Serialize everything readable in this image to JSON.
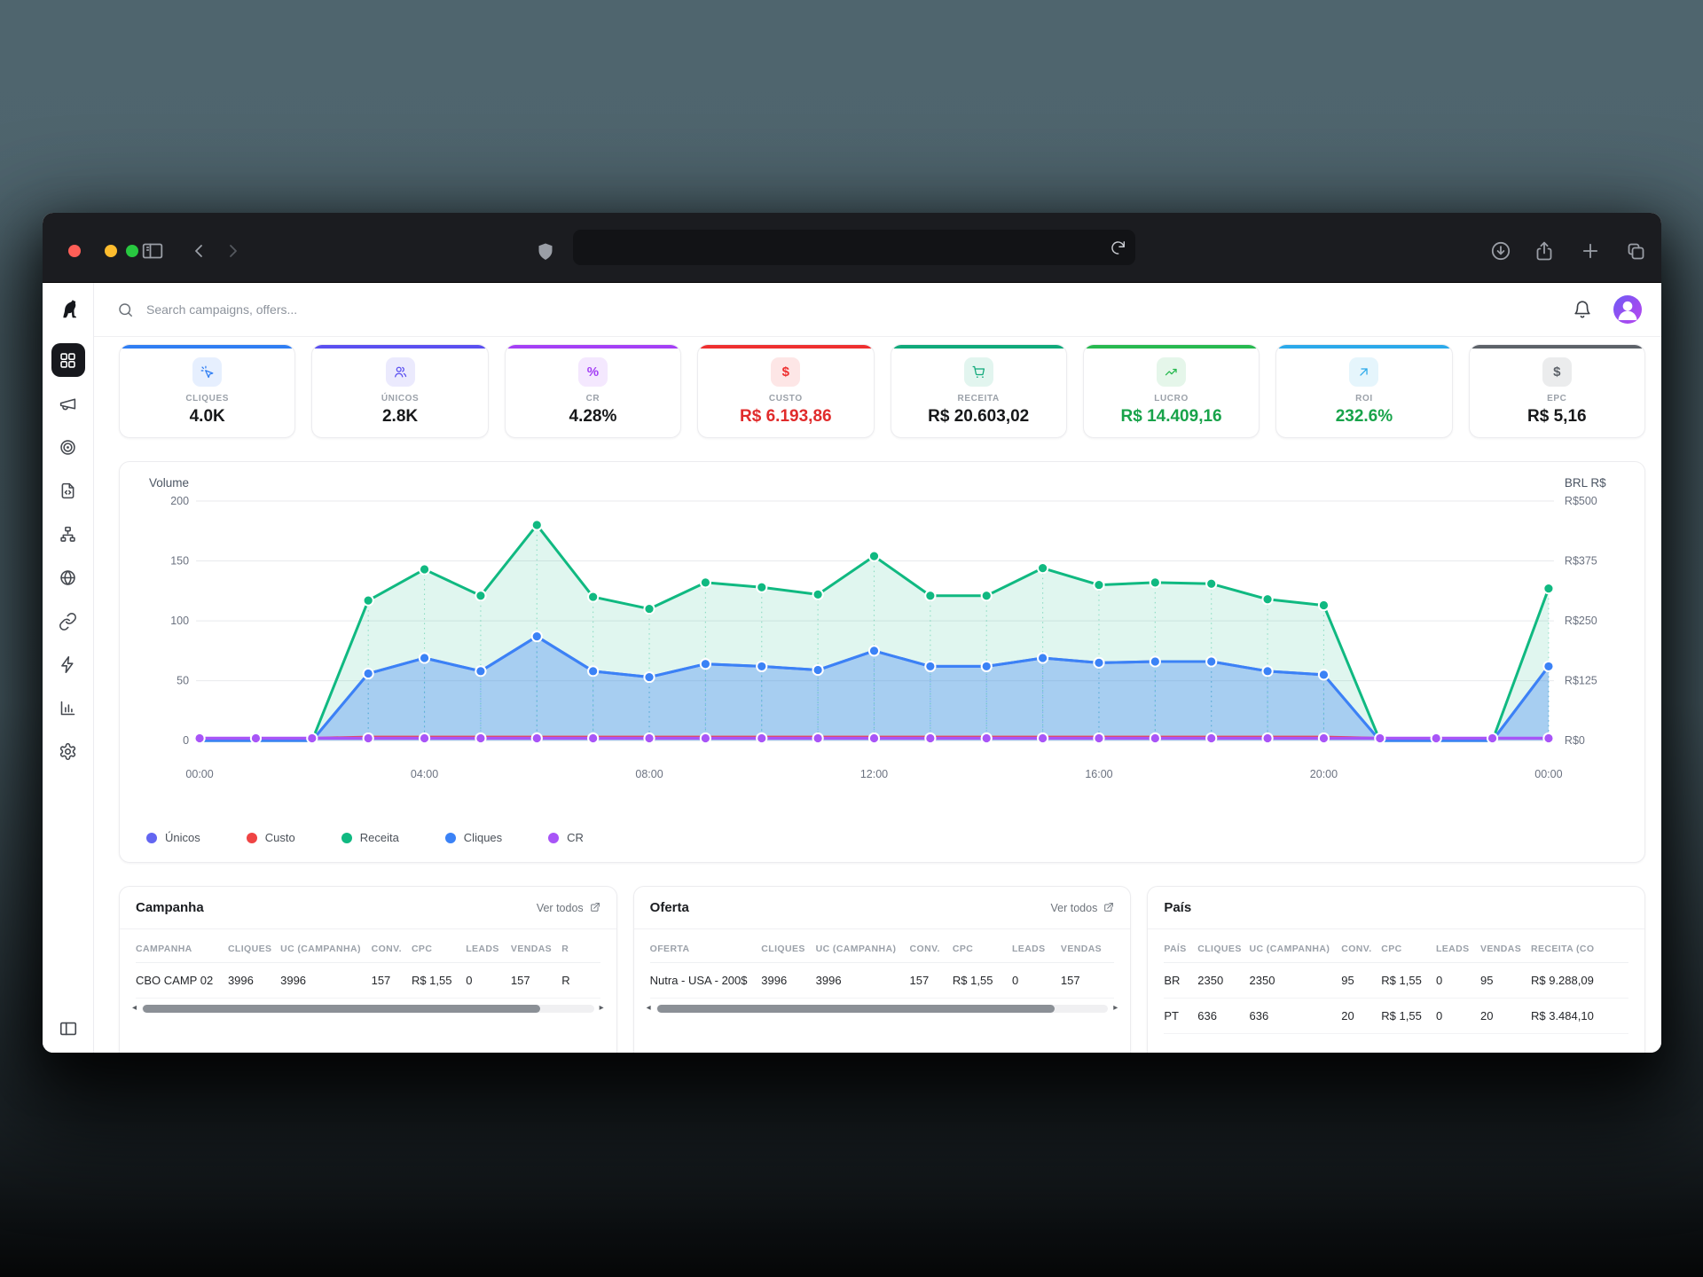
{
  "browser_chrome": {
    "traffic_lights": [
      "#ff5f57",
      "#febc2e",
      "#28c840"
    ],
    "url_value": ""
  },
  "topbar": {
    "search_placeholder": "Search campaigns, offers..."
  },
  "sidebar": {
    "items": [
      {
        "name": "dashboard",
        "icon": "grid",
        "active": true
      },
      {
        "name": "campaigns",
        "icon": "megaphone",
        "active": false
      },
      {
        "name": "offers",
        "icon": "target",
        "active": false
      },
      {
        "name": "landers",
        "icon": "file-code",
        "active": false
      },
      {
        "name": "funnels",
        "icon": "sitemap",
        "active": false
      },
      {
        "name": "domains",
        "icon": "globe",
        "active": false
      },
      {
        "name": "links",
        "icon": "link",
        "active": false
      },
      {
        "name": "automation",
        "icon": "bolt",
        "active": false
      },
      {
        "name": "reports",
        "icon": "bar-chart",
        "active": false
      },
      {
        "name": "settings",
        "icon": "gear",
        "active": false
      }
    ]
  },
  "kpis": [
    {
      "label": "CLIQUES",
      "value": "4.0K",
      "accent": "#2f7ef3",
      "icon": "click",
      "value_color": "#17181a"
    },
    {
      "label": "ÚNICOS",
      "value": "2.8K",
      "accent": "#5a4ff0",
      "icon": "users",
      "value_color": "#17181a"
    },
    {
      "label": "CR",
      "value": "4.28%",
      "accent": "#a43ff5",
      "icon": "percent",
      "value_color": "#17181a"
    },
    {
      "label": "CUSTO",
      "value": "R$ 6.193,86",
      "accent": "#ee2f2f",
      "icon": "dollar",
      "value_color": "#e02b2b"
    },
    {
      "label": "RECEITA",
      "value": "R$ 20.603,02",
      "accent": "#0fa97a",
      "icon": "cart",
      "value_color": "#17181a"
    },
    {
      "label": "LUCRO",
      "value": "R$ 14.409,16",
      "accent": "#27b94f",
      "icon": "trend-up",
      "value_color": "#18a34a"
    },
    {
      "label": "ROI",
      "value": "232.6%",
      "accent": "#2ba9ea",
      "icon": "arrow-up-right",
      "value_color": "#18a34a"
    },
    {
      "label": "EPC",
      "value": "R$ 5,16",
      "accent": "#5d6269",
      "icon": "dollar",
      "value_color": "#17181a"
    }
  ],
  "chart_data": {
    "type": "area",
    "x": [
      "00:00",
      "01:00",
      "02:00",
      "03:00",
      "04:00",
      "05:00",
      "06:00",
      "07:00",
      "08:00",
      "09:00",
      "10:00",
      "11:00",
      "12:00",
      "13:00",
      "14:00",
      "15:00",
      "16:00",
      "17:00",
      "18:00",
      "19:00",
      "20:00",
      "21:00",
      "22:00",
      "23:00",
      "00:00"
    ],
    "tick_every": 4,
    "grid": true,
    "legend_position": "bottom",
    "left_axis": {
      "title": "Volume",
      "min": 0,
      "max": 200,
      "ticks": [
        0,
        50,
        100,
        150,
        200
      ]
    },
    "right_axis": {
      "title": "BRL R$",
      "labels": [
        "R$0",
        "R$125",
        "R$250",
        "R$375",
        "R$500"
      ]
    },
    "series": [
      {
        "name": "Únicos",
        "color": "#6366f1",
        "fill": false,
        "dots": false,
        "guides": false,
        "values": [
          0,
          0,
          0,
          56,
          69,
          58,
          87,
          58,
          53,
          64,
          62,
          59,
          75,
          62,
          62,
          69,
          65,
          66,
          66,
          58,
          55,
          0,
          0,
          0,
          62
        ]
      },
      {
        "name": "Custo",
        "color": "#ef4444",
        "fill": false,
        "dots": false,
        "guides": false,
        "values": [
          2,
          2,
          2,
          3,
          3,
          3,
          3,
          3,
          3,
          3,
          3,
          3,
          3,
          3,
          3,
          3,
          3,
          3,
          3,
          3,
          3,
          2,
          2,
          2,
          2
        ]
      },
      {
        "name": "Receita",
        "color": "#10b981",
        "fill": true,
        "dots": true,
        "guides": true,
        "values": [
          0,
          0,
          0,
          117,
          143,
          121,
          180,
          120,
          110,
          132,
          128,
          122,
          154,
          121,
          121,
          144,
          130,
          132,
          131,
          118,
          113,
          0,
          0,
          0,
          127
        ]
      },
      {
        "name": "Cliques",
        "color": "#3b82f6",
        "fill": true,
        "dots": true,
        "guides": true,
        "values": [
          0,
          0,
          0,
          56,
          69,
          58,
          87,
          58,
          53,
          64,
          62,
          59,
          75,
          62,
          62,
          69,
          65,
          66,
          66,
          58,
          55,
          0,
          0,
          0,
          62
        ]
      },
      {
        "name": "CR",
        "color": "#a855f7",
        "fill": false,
        "dots": true,
        "guides": false,
        "values": [
          2,
          2,
          2,
          2,
          2,
          2,
          2,
          2,
          2,
          2,
          2,
          2,
          2,
          2,
          2,
          2,
          2,
          2,
          2,
          2,
          2,
          2,
          2,
          2,
          2
        ]
      }
    ]
  },
  "tables": [
    {
      "title": "Campanha",
      "link": "Ver todos",
      "scrollbar": true,
      "columns": [
        "CAMPANHA",
        "CLIQUES",
        "UC (CAMPANHA)",
        "CONV.",
        "CPC",
        "LEADS",
        "VENDAS",
        "R"
      ],
      "rows": [
        [
          "CBO CAMP 02",
          "3996",
          "3996",
          "157",
          "R$ 1,55",
          "0",
          "157",
          "R"
        ]
      ]
    },
    {
      "title": "Oferta",
      "link": "Ver todos",
      "scrollbar": true,
      "columns": [
        "OFERTA",
        "CLIQUES",
        "UC (CAMPANHA)",
        "CONV.",
        "CPC",
        "LEADS",
        "VENDAS"
      ],
      "rows": [
        [
          "Nutra - USA - 200$",
          "3996",
          "3996",
          "157",
          "R$ 1,55",
          "0",
          "157"
        ]
      ]
    },
    {
      "title": "País",
      "link": "",
      "scrollbar": false,
      "columns": [
        "PAÍS",
        "CLIQUES",
        "UC (CAMPANHA)",
        "CONV.",
        "CPC",
        "LEADS",
        "VENDAS",
        "RECEITA (CO"
      ],
      "rows": [
        [
          "BR",
          "2350",
          "2350",
          "95",
          "R$ 1,55",
          "0",
          "95",
          "R$ 9.288,09"
        ],
        [
          "PT",
          "636",
          "636",
          "20",
          "R$ 1,55",
          "0",
          "20",
          "R$ 3.484,10"
        ]
      ]
    }
  ]
}
